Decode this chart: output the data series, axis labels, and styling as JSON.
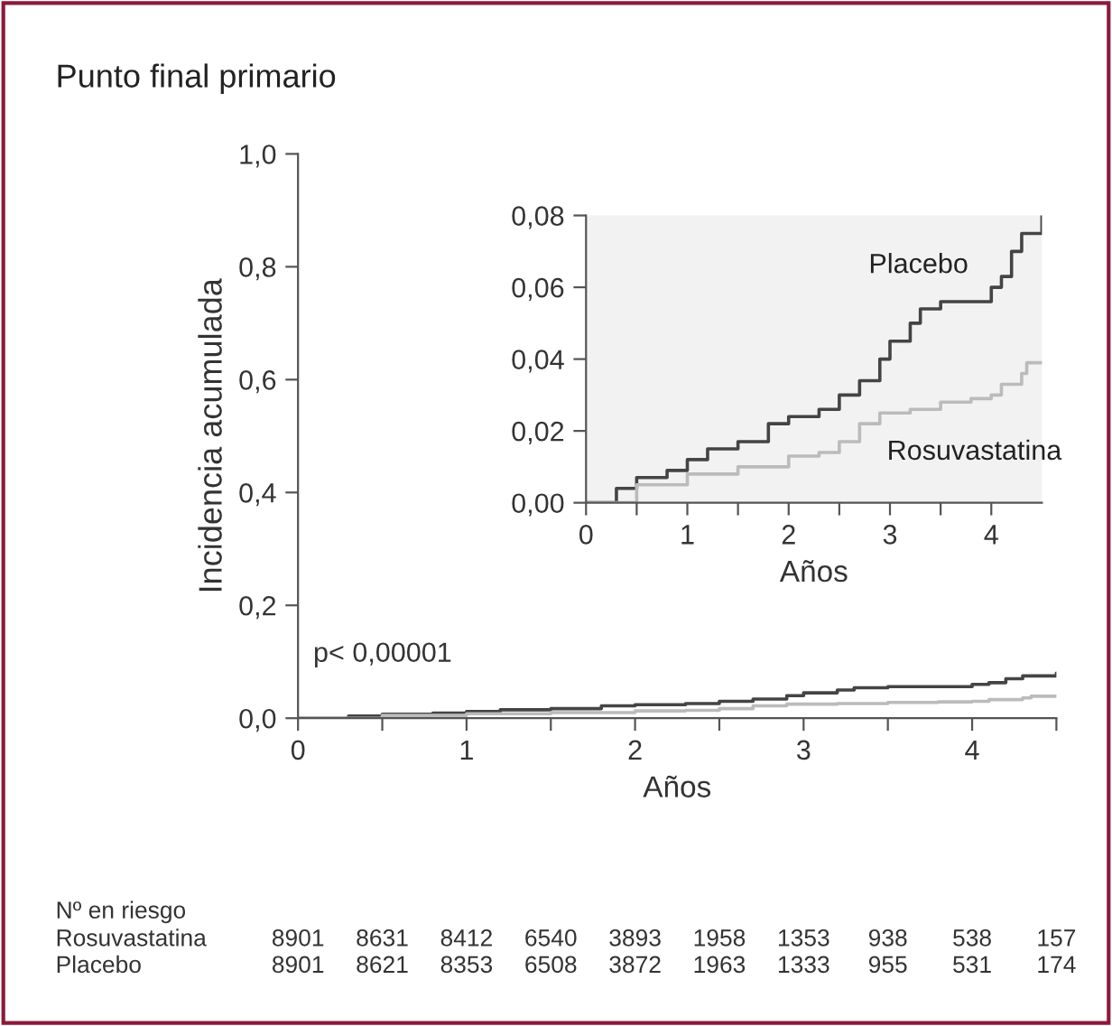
{
  "chart_data": [
    {
      "type": "step",
      "title": "Punto final primario",
      "xlabel": "Años",
      "ylabel": "Incidencia acumulada",
      "xlim": [
        0,
        4.5
      ],
      "ylim": [
        0,
        1.0
      ],
      "xticks": [
        0,
        {
          "value": 0.5,
          "label": null
        },
        1,
        {
          "value": 1.5,
          "label": null
        },
        2,
        {
          "value": 2.5,
          "label": null
        },
        3,
        {
          "value": 3.5,
          "label": null
        },
        4,
        {
          "value": 4.5,
          "label": null
        }
      ],
      "yticks": [
        {
          "value": 0,
          "label": "0,0"
        },
        {
          "value": 0.2,
          "label": "0,2"
        },
        {
          "value": 0.4,
          "label": "0,4"
        },
        {
          "value": 0.6,
          "label": "0,6"
        },
        {
          "value": 0.8,
          "label": "0,8"
        },
        {
          "value": 1.0,
          "label": "1,0"
        }
      ],
      "grid": false,
      "legend": false,
      "series": [
        {
          "color": "#444444",
          "x": [
            0,
            0.1,
            0.3,
            0.5,
            0.8,
            1.0,
            1.2,
            1.5,
            1.8,
            2.0,
            2.3,
            2.5,
            2.7,
            2.9,
            3.0,
            3.2,
            3.3,
            3.5,
            3.8,
            4.0,
            4.1,
            4.2,
            4.3,
            4.45,
            4.5
          ],
          "values": [
            0,
            0,
            0.004,
            0.007,
            0.009,
            0.012,
            0.015,
            0.017,
            0.022,
            0.024,
            0.026,
            0.03,
            0.034,
            0.04,
            0.045,
            0.05,
            0.054,
            0.056,
            0.056,
            0.06,
            0.063,
            0.07,
            0.075,
            0.075,
            0.08
          ]
        },
        {
          "color": "#bbbbbb",
          "x": [
            0,
            0.5,
            1.0,
            1.5,
            2.0,
            2.3,
            2.5,
            2.7,
            2.9,
            3.2,
            3.5,
            3.8,
            4.0,
            4.1,
            4.3,
            4.35,
            4.5
          ],
          "values": [
            0,
            0.005,
            0.008,
            0.01,
            0.013,
            0.014,
            0.017,
            0.022,
            0.025,
            0.026,
            0.028,
            0.029,
            0.03,
            0.033,
            0.036,
            0.039,
            0.039
          ]
        }
      ],
      "annotations": [
        "p< 0,00001",
        "Nº en riesgo",
        "Rosuvastatina 8901 8631 8412 6540 3893 1958 1353 938 538 157",
        "Placebo 8901 8621 8353 6508 3872 1963 1333 955 531 174"
      ]
    },
    {
      "type": "step",
      "xlabel": "Años",
      "xlim": [
        0,
        4.5
      ],
      "ylim": [
        0,
        0.08
      ],
      "xticks": [
        0,
        {
          "value": 0.5,
          "label": null
        },
        1,
        {
          "value": 1.5,
          "label": null
        },
        2,
        {
          "value": 2.5,
          "label": null
        },
        3,
        {
          "value": 3.5,
          "label": null
        },
        4
      ],
      "yticks": [
        {
          "value": 0,
          "label": "0,00"
        },
        {
          "value": 0.02,
          "label": "0,02"
        },
        {
          "value": 0.04,
          "label": "0,04"
        },
        {
          "value": 0.06,
          "label": "0,06"
        },
        {
          "value": 0.08,
          "label": "0,08"
        }
      ],
      "grid": false,
      "legend": false,
      "series": [
        {
          "name": "Placebo",
          "color": "#444444",
          "x": [
            0,
            0.1,
            0.3,
            0.5,
            0.8,
            1.0,
            1.2,
            1.5,
            1.8,
            2.0,
            2.3,
            2.5,
            2.7,
            2.9,
            3.0,
            3.2,
            3.3,
            3.5,
            3.8,
            4.0,
            4.1,
            4.2,
            4.3,
            4.45,
            4.5
          ],
          "values": [
            0,
            0,
            0.004,
            0.007,
            0.009,
            0.012,
            0.015,
            0.017,
            0.022,
            0.024,
            0.026,
            0.03,
            0.034,
            0.04,
            0.045,
            0.05,
            0.054,
            0.056,
            0.056,
            0.06,
            0.063,
            0.07,
            0.075,
            0.075,
            0.08
          ]
        },
        {
          "name": "Rosuvastatina",
          "color": "#bbbbbb",
          "x": [
            0,
            0.5,
            1.0,
            1.5,
            2.0,
            2.3,
            2.5,
            2.7,
            2.9,
            3.2,
            3.5,
            3.8,
            4.0,
            4.1,
            4.3,
            4.35,
            4.5
          ],
          "values": [
            0,
            0.005,
            0.008,
            0.01,
            0.013,
            0.014,
            0.017,
            0.022,
            0.025,
            0.026,
            0.028,
            0.029,
            0.03,
            0.033,
            0.036,
            0.039,
            0.039
          ]
        }
      ]
    }
  ]
}
